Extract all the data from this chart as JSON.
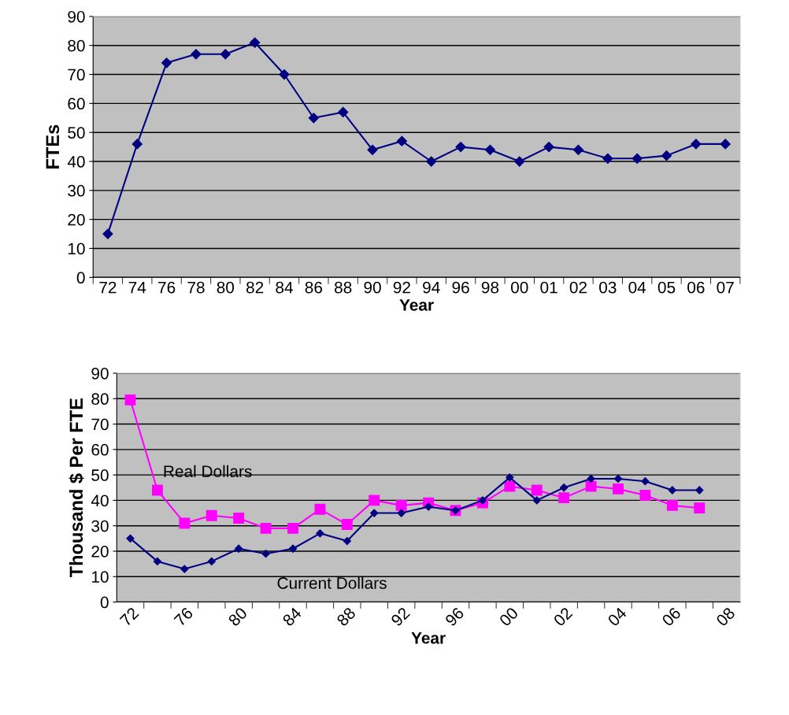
{
  "chart_data": [
    {
      "type": "line",
      "ylabel": "FTEs",
      "xlabel": "Year",
      "categories": [
        "72",
        "74",
        "76",
        "78",
        "80",
        "82",
        "84",
        "86",
        "88",
        "90",
        "92",
        "94",
        "96",
        "98",
        "00",
        "01",
        "02",
        "03",
        "04",
        "05",
        "06",
        "07"
      ],
      "series": [
        {
          "color": "#000080",
          "values": [
            15,
            46,
            74,
            77,
            77,
            81,
            70,
            55,
            57,
            44,
            47,
            40,
            45,
            44,
            40,
            45,
            44,
            41,
            41,
            42,
            46,
            46
          ]
        }
      ],
      "ylim": [
        0,
        90
      ],
      "yticks": [
        0,
        10,
        20,
        30,
        40,
        50,
        60,
        70,
        80,
        90
      ],
      "grid": "y",
      "marker": "diamond",
      "line_style": "solid",
      "legend": false
    },
    {
      "type": "line",
      "ylabel": "Thousand $ Per FTE",
      "xlabel": "Year",
      "categories": [
        "72",
        null,
        "76",
        null,
        "80",
        null,
        "84",
        null,
        "88",
        null,
        "92",
        null,
        "96",
        null,
        "00",
        null,
        "02",
        null,
        "04",
        null,
        "06",
        null,
        "08"
      ],
      "series": [
        {
          "name": "Real Dollars",
          "color": "#ff00ff",
          "marker": "square",
          "values": [
            79.5,
            44,
            31,
            34,
            33,
            29,
            29,
            36.5,
            30.5,
            40,
            38,
            39,
            36,
            39,
            45.5,
            44,
            41,
            45.5,
            44.5,
            42,
            38,
            37,
            null
          ]
        },
        {
          "name": "Current Dollars",
          "color": "#000080",
          "marker": "diamond",
          "values": [
            25,
            16,
            13,
            16,
            21,
            19,
            21,
            27,
            24,
            35,
            35,
            37.5,
            36,
            40,
            49,
            40,
            45,
            48.5,
            48.5,
            47.5,
            44,
            44,
            null
          ]
        }
      ],
      "ylim": [
        0,
        90
      ],
      "yticks": [
        0,
        10,
        20,
        30,
        40,
        50,
        60,
        70,
        80,
        90
      ],
      "grid": "y",
      "line_style": "solid",
      "legend": false
    }
  ]
}
